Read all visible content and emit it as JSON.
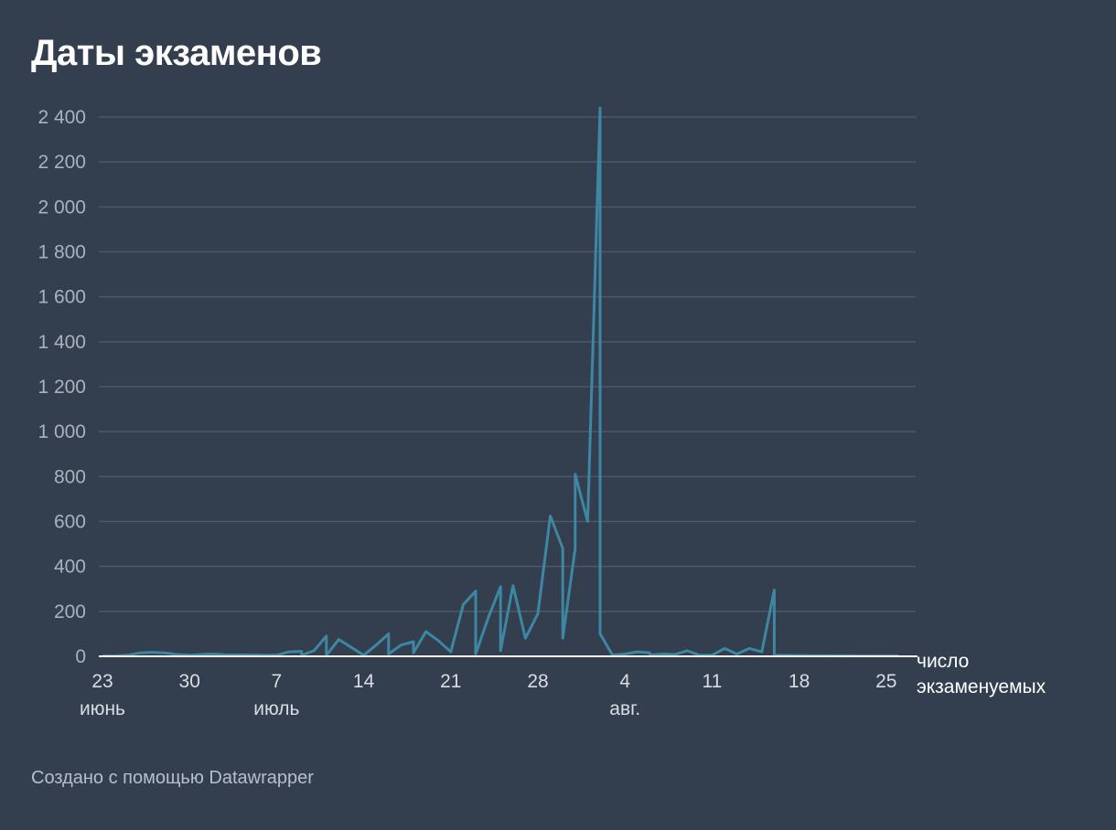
{
  "title": "Даты экзаменов",
  "credit": "Создано с помощью Datawrapper",
  "colors": {
    "background": "#333e4f",
    "line": "#3d87a3",
    "grid": "#4d5868",
    "baseline": "#ffffff"
  },
  "chart_data": {
    "type": "line",
    "title": "Даты экзаменов",
    "ylim": [
      0,
      2400
    ],
    "y_ticks": [
      0,
      200,
      400,
      600,
      800,
      1000,
      1200,
      1400,
      1600,
      1800,
      2000,
      2200,
      2400
    ],
    "y_tick_labels": [
      "0",
      "200",
      "400",
      "600",
      "800",
      "1 000",
      "1 200",
      "1 400",
      "1 600",
      "1 800",
      "2 000",
      "2 200",
      "2 400"
    ],
    "x_ticks": [
      {
        "date": "06-23",
        "label": "23",
        "month": "июнь"
      },
      {
        "date": "06-30",
        "label": "30",
        "month": ""
      },
      {
        "date": "07-07",
        "label": "7",
        "month": "июль"
      },
      {
        "date": "07-14",
        "label": "14",
        "month": ""
      },
      {
        "date": "07-21",
        "label": "21",
        "month": ""
      },
      {
        "date": "07-28",
        "label": "28",
        "month": ""
      },
      {
        "date": "08-04",
        "label": "4",
        "month": "авг."
      },
      {
        "date": "08-11",
        "label": "11",
        "month": ""
      },
      {
        "date": "08-18",
        "label": "18",
        "month": ""
      },
      {
        "date": "08-25",
        "label": "25",
        "month": ""
      }
    ],
    "grid": true,
    "series": [
      {
        "name": "число экзаменуемых",
        "points": [
          [
            "06-23",
            2
          ],
          [
            "06-24",
            2
          ],
          [
            "06-25",
            5
          ],
          [
            "06-26",
            15
          ],
          [
            "06-27",
            18
          ],
          [
            "06-28",
            15
          ],
          [
            "06-29",
            8
          ],
          [
            "06-30",
            5
          ],
          [
            "07-01",
            8
          ],
          [
            "07-02",
            10
          ],
          [
            "07-03",
            6
          ],
          [
            "07-04",
            6
          ],
          [
            "07-05",
            6
          ],
          [
            "07-06",
            5
          ],
          [
            "07-07",
            5
          ],
          [
            "07-08",
            20
          ],
          [
            "07-09",
            22
          ],
          [
            "07-09",
            5
          ],
          [
            "07-10",
            25
          ],
          [
            "07-11",
            90
          ],
          [
            "07-11",
            5
          ],
          [
            "07-12",
            75
          ],
          [
            "07-13",
            40
          ],
          [
            "07-14",
            5
          ],
          [
            "07-15",
            50
          ],
          [
            "07-16",
            100
          ],
          [
            "07-16",
            10
          ],
          [
            "07-17",
            50
          ],
          [
            "07-18",
            65
          ],
          [
            "07-18",
            15
          ],
          [
            "07-19",
            110
          ],
          [
            "07-20",
            70
          ],
          [
            "07-21",
            20
          ],
          [
            "07-22",
            230
          ],
          [
            "07-23",
            290
          ],
          [
            "07-23",
            10
          ],
          [
            "07-24",
            170
          ],
          [
            "07-25",
            310
          ],
          [
            "07-25",
            25
          ],
          [
            "07-26",
            315
          ],
          [
            "07-27",
            80
          ],
          [
            "07-28",
            190
          ],
          [
            "07-29",
            625
          ],
          [
            "07-30",
            480
          ],
          [
            "07-30",
            80
          ],
          [
            "07-31",
            480
          ],
          [
            "07-31",
            810
          ],
          [
            "08-01",
            600
          ],
          [
            "08-02",
            2440
          ],
          [
            "08-02",
            100
          ],
          [
            "08-03",
            5
          ],
          [
            "08-04",
            10
          ],
          [
            "08-05",
            20
          ],
          [
            "08-06",
            15
          ],
          [
            "08-06",
            5
          ],
          [
            "08-07",
            10
          ],
          [
            "08-08",
            8
          ],
          [
            "08-09",
            25
          ],
          [
            "08-10",
            5
          ],
          [
            "08-11",
            5
          ],
          [
            "08-12",
            35
          ],
          [
            "08-13",
            10
          ],
          [
            "08-14",
            35
          ],
          [
            "08-15",
            20
          ],
          [
            "08-16",
            295
          ],
          [
            "08-16",
            5
          ],
          [
            "08-20",
            3
          ],
          [
            "08-26",
            2
          ]
        ]
      }
    ]
  }
}
